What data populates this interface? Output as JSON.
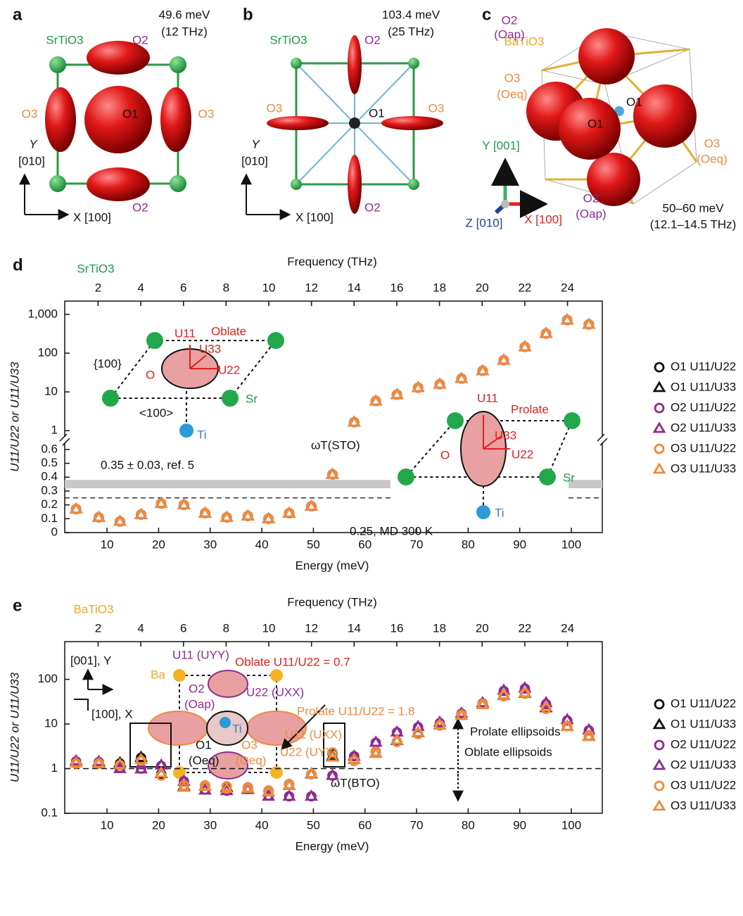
{
  "panels": {
    "a": {
      "label": "a",
      "compound": "SrTiO3",
      "energy": "49.6 meV",
      "frequency": "(12 THz)",
      "o1": "O1",
      "o2_top": "O2",
      "o2_bottom": "O2",
      "o3_left": "O3",
      "o3_right": "O3",
      "axis_y": "Y",
      "axis_y_dir": "[010]",
      "axis_x": "X [100]"
    },
    "b": {
      "label": "b",
      "compound": "SrTiO3",
      "energy": "103.4 meV",
      "frequency": "(25 THz)",
      "o1": "O1",
      "o2_top": "O2",
      "o2_bottom": "O2",
      "o3_left": "O3",
      "o3_right": "O3",
      "axis_y": "Y",
      "axis_y_dir": "[010]",
      "axis_x": "X [100]"
    },
    "c": {
      "label": "c",
      "compound": "BaTiO3",
      "o2_top": "O2",
      "o2_top_site": "(Oap)",
      "o3_left": "O3",
      "o3_left_site": "(Oeq)",
      "o1_back": "O1",
      "o1_front": "O1",
      "o3_right": "O3",
      "o3_right_site": "(Oeq)",
      "o2_bottom": "O2",
      "o2_bottom_site": "(Oap)",
      "axis_y": "Y [001]",
      "axis_z": "Z [010]",
      "axis_x": "X [100]",
      "energy": "50–60 meV",
      "frequency": "(12.1–14.5 THz)"
    }
  },
  "chart_data": [
    {
      "type": "scatter",
      "panel_label": "d",
      "compound": "SrTiO3",
      "x_label": "Energy (meV)",
      "x2_label": "Frequency (THz)",
      "y_label": "U11/U22 or U11/U33",
      "xlim": [
        1.8,
        106
      ],
      "xticks": [
        10,
        20,
        30,
        40,
        50,
        60,
        70,
        80,
        90,
        100
      ],
      "x2lim": [
        0.435,
        25.63
      ],
      "x2ticks": [
        2,
        4,
        6,
        8,
        10,
        12,
        14,
        16,
        18,
        20,
        22,
        24
      ],
      "yscale_upper": "log",
      "ylim_upper": [
        0.72,
        2200
      ],
      "yticks_upper": [
        1,
        10,
        100,
        {
          "value": 1000,
          "label": "1,000"
        }
      ],
      "ylim_lower": [
        0,
        0.645
      ],
      "yticks_lower": [
        0,
        0.1,
        0.2,
        0.3,
        0.4,
        0.5,
        0.6
      ],
      "x": [
        4.0,
        8.4,
        12.5,
        16.6,
        20.5,
        24.9,
        29.0,
        33.2,
        37.3,
        41.3,
        45.3,
        49.6,
        53.7,
        57.9,
        62.1,
        66.2,
        70.3,
        74.5,
        78.7,
        82.8,
        86.9,
        91.0,
        95.1,
        99.2,
        103.4
      ],
      "series": [
        {
          "name": "O1 U11/U22",
          "color": "#111111",
          "marker": "circle",
          "values": [
            0.17,
            0.11,
            0.08,
            0.13,
            0.21,
            0.2,
            0.14,
            0.11,
            0.12,
            0.1,
            0.14,
            0.19,
            0.42,
            1.65,
            5.8,
            8.5,
            12.8,
            15.8,
            22,
            35,
            66,
            145,
            320,
            715,
            550
          ]
        },
        {
          "name": "O1 U11/U33",
          "color": "#111111",
          "marker": "triangle",
          "values": [
            0.17,
            0.11,
            0.08,
            0.13,
            0.21,
            0.2,
            0.14,
            0.11,
            0.12,
            0.1,
            0.14,
            0.19,
            0.42,
            1.65,
            5.8,
            8.5,
            12.8,
            15.8,
            22,
            35,
            66,
            145,
            320,
            715,
            550
          ]
        },
        {
          "name": "O2 U11/U22",
          "color": "#8e2c91",
          "marker": "circle",
          "values": [
            0.17,
            0.11,
            0.08,
            0.13,
            0.21,
            0.2,
            0.14,
            0.11,
            0.12,
            0.1,
            0.14,
            0.19,
            0.42,
            1.65,
            5.8,
            8.5,
            12.8,
            15.8,
            22,
            35,
            66,
            145,
            320,
            715,
            550
          ]
        },
        {
          "name": "O2 U11/U33",
          "color": "#8e2c91",
          "marker": "triangle",
          "values": [
            0.17,
            0.11,
            0.08,
            0.13,
            0.21,
            0.2,
            0.14,
            0.11,
            0.12,
            0.1,
            0.14,
            0.19,
            0.42,
            1.65,
            5.8,
            8.5,
            12.8,
            15.8,
            22,
            35,
            66,
            145,
            320,
            715,
            550
          ]
        },
        {
          "name": "O3 U11/U22",
          "color": "#f08a3c",
          "marker": "circle",
          "values": [
            0.17,
            0.11,
            0.08,
            0.13,
            0.21,
            0.2,
            0.14,
            0.11,
            0.12,
            0.1,
            0.14,
            0.19,
            0.42,
            1.65,
            5.8,
            8.5,
            12.8,
            15.8,
            22,
            35,
            66,
            145,
            320,
            715,
            550
          ]
        },
        {
          "name": "O3 U11/U33",
          "color": "#f08a3c",
          "marker": "triangle",
          "values": [
            0.17,
            0.11,
            0.08,
            0.13,
            0.21,
            0.2,
            0.14,
            0.11,
            0.12,
            0.1,
            0.14,
            0.19,
            0.42,
            1.65,
            5.8,
            8.5,
            12.8,
            15.8,
            22,
            35,
            66,
            145,
            320,
            715,
            550
          ]
        }
      ],
      "band": {
        "label": "0.35 ± 0.03, ref. 5",
        "value": 0.35,
        "error": 0.03
      },
      "reference_line": {
        "label": "0.25, MD 300 K",
        "value": 0.25
      },
      "annotation": "ωT(STO)",
      "legend": "right",
      "inset_oblate": {
        "u11": "U11",
        "shape": "Oblate",
        "u33": "U33",
        "plane": "{100}",
        "u22": "U22",
        "o": "O",
        "sr": "Sr",
        "direction": "<100>",
        "ti": "Ti"
      },
      "inset_prolate": {
        "u11": "U11",
        "shape": "Prolate",
        "u33": "U33",
        "o": "O",
        "u22": "U22",
        "sr": "Sr",
        "ti": "Ti"
      }
    },
    {
      "type": "scatter",
      "panel_label": "e",
      "compound": "BaTiO3",
      "x_label": "Energy (meV)",
      "x2_label": "Frequency (THz)",
      "y_label": "U11/U22 or U11/U33",
      "xlim": [
        1.8,
        106
      ],
      "xticks": [
        10,
        20,
        30,
        40,
        50,
        60,
        70,
        80,
        90,
        100
      ],
      "x2lim": [
        0.435,
        25.63
      ],
      "x2ticks": [
        2,
        4,
        6,
        8,
        10,
        12,
        14,
        16,
        18,
        20,
        22,
        24
      ],
      "yscale": "log",
      "ylim": [
        0.1,
        700
      ],
      "yticks": [
        0.1,
        1,
        10,
        100
      ],
      "x": [
        4.0,
        8.4,
        12.5,
        16.6,
        20.5,
        24.9,
        29.0,
        33.2,
        37.3,
        41.3,
        45.3,
        49.6,
        53.7,
        57.9,
        62.1,
        66.2,
        70.3,
        74.5,
        78.7,
        82.8,
        86.9,
        91.0,
        95.1,
        99.2,
        103.4
      ],
      "series": [
        {
          "name": "O1 U11/U22",
          "color": "#111111",
          "marker": "circle",
          "values": [
            1.3,
            1.3,
            1.3,
            1.75,
            0.75,
            0.42,
            0.42,
            0.4,
            0.38,
            0.32,
            0.45,
            0.75,
            2.2,
            1.5,
            2.4,
            4.0,
            6.0,
            9.3,
            16,
            28,
            42,
            48,
            22,
            9,
            5.5
          ]
        },
        {
          "name": "O1 U11/U33",
          "color": "#111111",
          "marker": "triangle",
          "values": [
            1.35,
            1.35,
            1.35,
            1.8,
            0.78,
            0.4,
            0.4,
            0.38,
            0.36,
            0.3,
            0.42,
            0.76,
            1.9,
            1.6,
            2.2,
            4.3,
            6.4,
            9.5,
            15.5,
            27,
            44,
            49,
            23,
            8.8,
            5.3
          ]
        },
        {
          "name": "O2 U11/U22",
          "color": "#8e2c91",
          "marker": "circle",
          "values": [
            1.45,
            1.4,
            1.05,
            1.0,
            1.15,
            0.52,
            0.34,
            0.32,
            0.35,
            0.25,
            0.24,
            0.24,
            0.7,
            1.9,
            3.8,
            6.5,
            8.5,
            10.5,
            17,
            29,
            55,
            62,
            28,
            12,
            7.2
          ]
        },
        {
          "name": "O2 U11/U33",
          "color": "#8e2c91",
          "marker": "triangle",
          "values": [
            1.5,
            1.45,
            1.0,
            0.98,
            1.2,
            0.52,
            0.33,
            0.32,
            0.34,
            0.24,
            0.24,
            0.24,
            0.7,
            1.9,
            3.9,
            6.6,
            8.8,
            11,
            17.5,
            30,
            57,
            64,
            30,
            12.5,
            7.4
          ]
        },
        {
          "name": "O3 U11/U22",
          "color": "#f08a3c",
          "marker": "circle",
          "values": [
            1.3,
            1.3,
            1.2,
            1.5,
            0.7,
            0.42,
            0.42,
            0.4,
            0.38,
            0.32,
            0.45,
            0.75,
            2.3,
            1.5,
            2.4,
            4.0,
            6.0,
            9.3,
            16,
            28,
            42,
            48,
            22,
            9,
            5.5
          ]
        },
        {
          "name": "O3 U11/U33",
          "color": "#f08a3c",
          "marker": "triangle",
          "values": [
            1.35,
            1.3,
            1.25,
            1.6,
            0.8,
            0.38,
            0.4,
            0.36,
            0.36,
            0.3,
            0.42,
            0.78,
            1.8,
            1.6,
            2.2,
            4.4,
            6.5,
            9.6,
            15.5,
            27,
            45,
            50,
            24,
            8.7,
            5.2
          ]
        }
      ],
      "reference_line": {
        "value": 1
      },
      "annotation": "ωT(BTO)",
      "prolate_label": "Prolate ellipsoids",
      "oblate_label": "Oblate ellipsoids",
      "legend": "right",
      "inset": {
        "axis_y": "[001], Y",
        "axis_x": "[100], X",
        "ba": "Ba",
        "o2_u11": "U11 (UYY)",
        "oblate": "Oblate U11/U22 = 0.7",
        "o2": "O2",
        "o2_site": "(Oap)",
        "o2_u22": "U22 (UXX)",
        "prolate": "Prolate U11/U22 = 1.8",
        "ti": "Ti",
        "o3_u11": "U11 (UXX)",
        "o1": "O1",
        "o1_site": "(Oeq)",
        "o3": "O3",
        "o3_site": "(Oeq)",
        "o3_u22": "U22 (UYY)"
      }
    }
  ]
}
